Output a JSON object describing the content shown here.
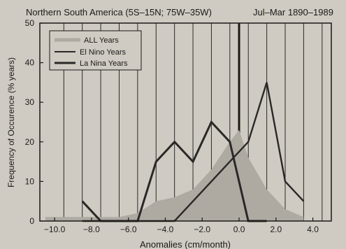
{
  "chart_data": {
    "type": "area",
    "title": "Northern South America (5S–15N; 75W–35W)",
    "subtitle": "Jul–Mar 1890–1989",
    "xlabel": "Anomalies (cm/month)",
    "ylabel": "Frequency of Occurence (% years)",
    "xlim": [
      -10.8,
      5.0
    ],
    "ylim": [
      0,
      50
    ],
    "x_ticks": [
      -10.0,
      -8.0,
      -6.0,
      -4.0,
      -2.0,
      0.0,
      2.0,
      4.0
    ],
    "x_tick_labels": [
      "−10.0",
      "−8.0",
      "−6.0",
      "−4.0",
      "−2.0",
      "0.0",
      "2.0",
      "4.0"
    ],
    "y_ticks": [
      0,
      10,
      20,
      30,
      40,
      50
    ],
    "y_tick_labels": [
      "0",
      "10",
      "20",
      "30",
      "40",
      "50"
    ],
    "vertical_gridlines_x": [
      -9.5,
      -8.5,
      -7.5,
      -6.5,
      -5.5,
      -4.5,
      -3.5,
      -2.5,
      -1.5,
      -0.5,
      0.5,
      1.5,
      2.5,
      3.5,
      4.5
    ],
    "zero_line_x": 0.0,
    "grid": true,
    "legend_position": "top-left",
    "series": [
      {
        "name": "ALL Years",
        "style": "shaded-area",
        "color": "#aeaaa2",
        "x": [
          -10.5,
          -9.5,
          -8.5,
          -7.5,
          -6.5,
          -5.5,
          -4.5,
          -3.5,
          -2.5,
          -1.5,
          -0.5,
          0.0,
          0.5,
          1.5,
          2.5,
          3.5
        ],
        "y": [
          1,
          1,
          1,
          1,
          1,
          2,
          5,
          6,
          8,
          13,
          20,
          23,
          16,
          8,
          3,
          1
        ]
      },
      {
        "name": "El Nino Years",
        "style": "line",
        "color": "#2a2826",
        "x": [
          -8.5,
          -7.5,
          -3.5,
          -0.5,
          0.5,
          1.5,
          2.5,
          3.5
        ],
        "y": [
          0,
          0,
          0,
          15,
          20,
          35,
          10,
          5
        ]
      },
      {
        "name": "La Nina Years",
        "style": "line",
        "color": "#2a2826",
        "x": [
          -8.5,
          -7.5,
          -5.5,
          -4.5,
          -3.5,
          -2.5,
          -1.5,
          -0.5,
          0.5,
          1.5
        ],
        "y": [
          5,
          0,
          0,
          15,
          20,
          15,
          25,
          20,
          0,
          0
        ]
      }
    ]
  }
}
